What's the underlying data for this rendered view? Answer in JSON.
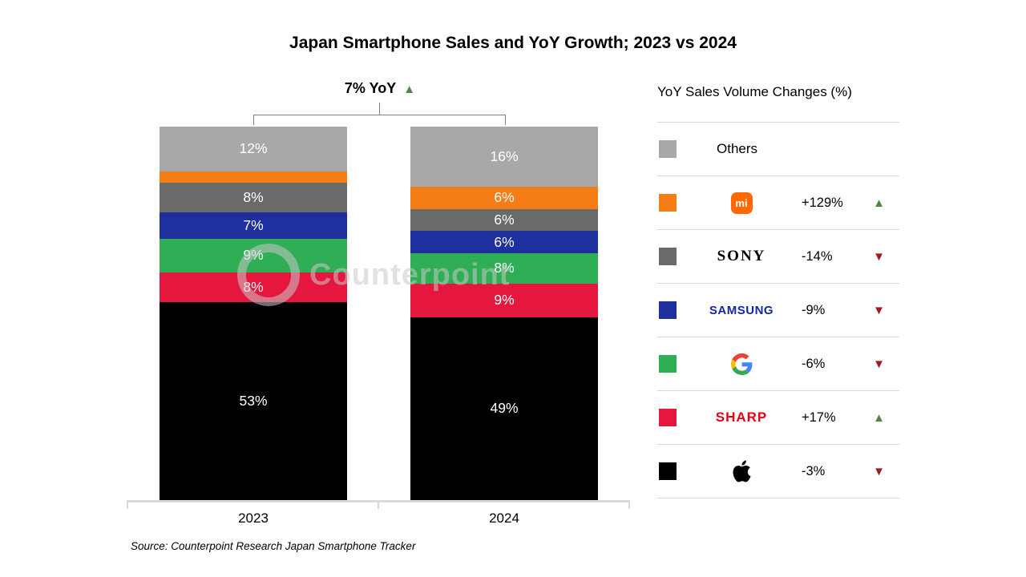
{
  "title": "Japan Smartphone Sales and YoY Growth; 2023 vs 2024",
  "annotation": {
    "label": "7% YoY",
    "direction": "up"
  },
  "watermark_text": "Counterpoint",
  "source_note": "Source: Counterpoint Research Japan Smartphone Tracker",
  "icons": {
    "up_triangle": "▲",
    "down_triangle": "▼"
  },
  "colors": {
    "up_arrow": "#4f8542",
    "down_arrow": "#9e1b1e",
    "axis": "#d9d9d9",
    "bracket": "#808080"
  },
  "legend": {
    "title": "YoY Sales Volume Changes (%)",
    "rows": [
      {
        "name": "Others",
        "swatch": "#a8a8a8",
        "label": "Others",
        "change": "",
        "direction": ""
      },
      {
        "name": "Xiaomi",
        "swatch": "#f57d15",
        "logo_text": "mi",
        "change": "+129%",
        "direction": "up"
      },
      {
        "name": "Sony",
        "swatch": "#6a6a6a",
        "logo_text": "SONY",
        "change": "-14%",
        "direction": "down"
      },
      {
        "name": "Samsung",
        "swatch": "#1e2f9e",
        "logo_text": "SAMSUNG",
        "change": "-9%",
        "direction": "down"
      },
      {
        "name": "Google",
        "swatch": "#2fae55",
        "logo_text": "G",
        "change": "-6%",
        "direction": "down"
      },
      {
        "name": "Sharp",
        "swatch": "#e5173f",
        "logo_text": "SHARP",
        "change": "+17%",
        "direction": "up"
      },
      {
        "name": "Apple",
        "swatch": "#000000",
        "logo_text": "",
        "change": "-3%",
        "direction": "down"
      }
    ]
  },
  "chart_data": {
    "type": "bar",
    "stacked": true,
    "categories": [
      "2023",
      "2024"
    ],
    "unit": "%",
    "ylim": [
      0,
      100
    ],
    "legend_position": "right",
    "title": "Japan Smartphone Sales and YoY Growth; 2023 vs 2024",
    "annotation": "7% YoY overall growth 2024 vs 2023",
    "series": [
      {
        "name": "Others",
        "color": "#a8a8a8",
        "values": [
          12,
          16
        ],
        "labels": [
          "12%",
          "16%"
        ]
      },
      {
        "name": "Xiaomi",
        "color": "#f57d15",
        "values": [
          3,
          6
        ],
        "labels": [
          "",
          "6%"
        ]
      },
      {
        "name": "Sony",
        "color": "#6a6a6a",
        "values": [
          8,
          6
        ],
        "labels": [
          "8%",
          "6%"
        ]
      },
      {
        "name": "Samsung",
        "color": "#1e2f9e",
        "values": [
          7,
          6
        ],
        "labels": [
          "7%",
          "6%"
        ]
      },
      {
        "name": "Google",
        "color": "#2fae55",
        "values": [
          9,
          8
        ],
        "labels": [
          "9%",
          "8%"
        ]
      },
      {
        "name": "Sharp",
        "color": "#e5173f",
        "values": [
          8,
          9
        ],
        "labels": [
          "8%",
          "9%"
        ]
      },
      {
        "name": "Apple",
        "color": "#000000",
        "values": [
          53,
          49
        ],
        "labels": [
          "53%",
          "49%"
        ]
      }
    ],
    "yoy_changes": {
      "Xiaomi": "+129%",
      "Sony": "-14%",
      "Samsung": "-9%",
      "Google": "-6%",
      "Sharp": "+17%",
      "Apple": "-3%"
    }
  }
}
